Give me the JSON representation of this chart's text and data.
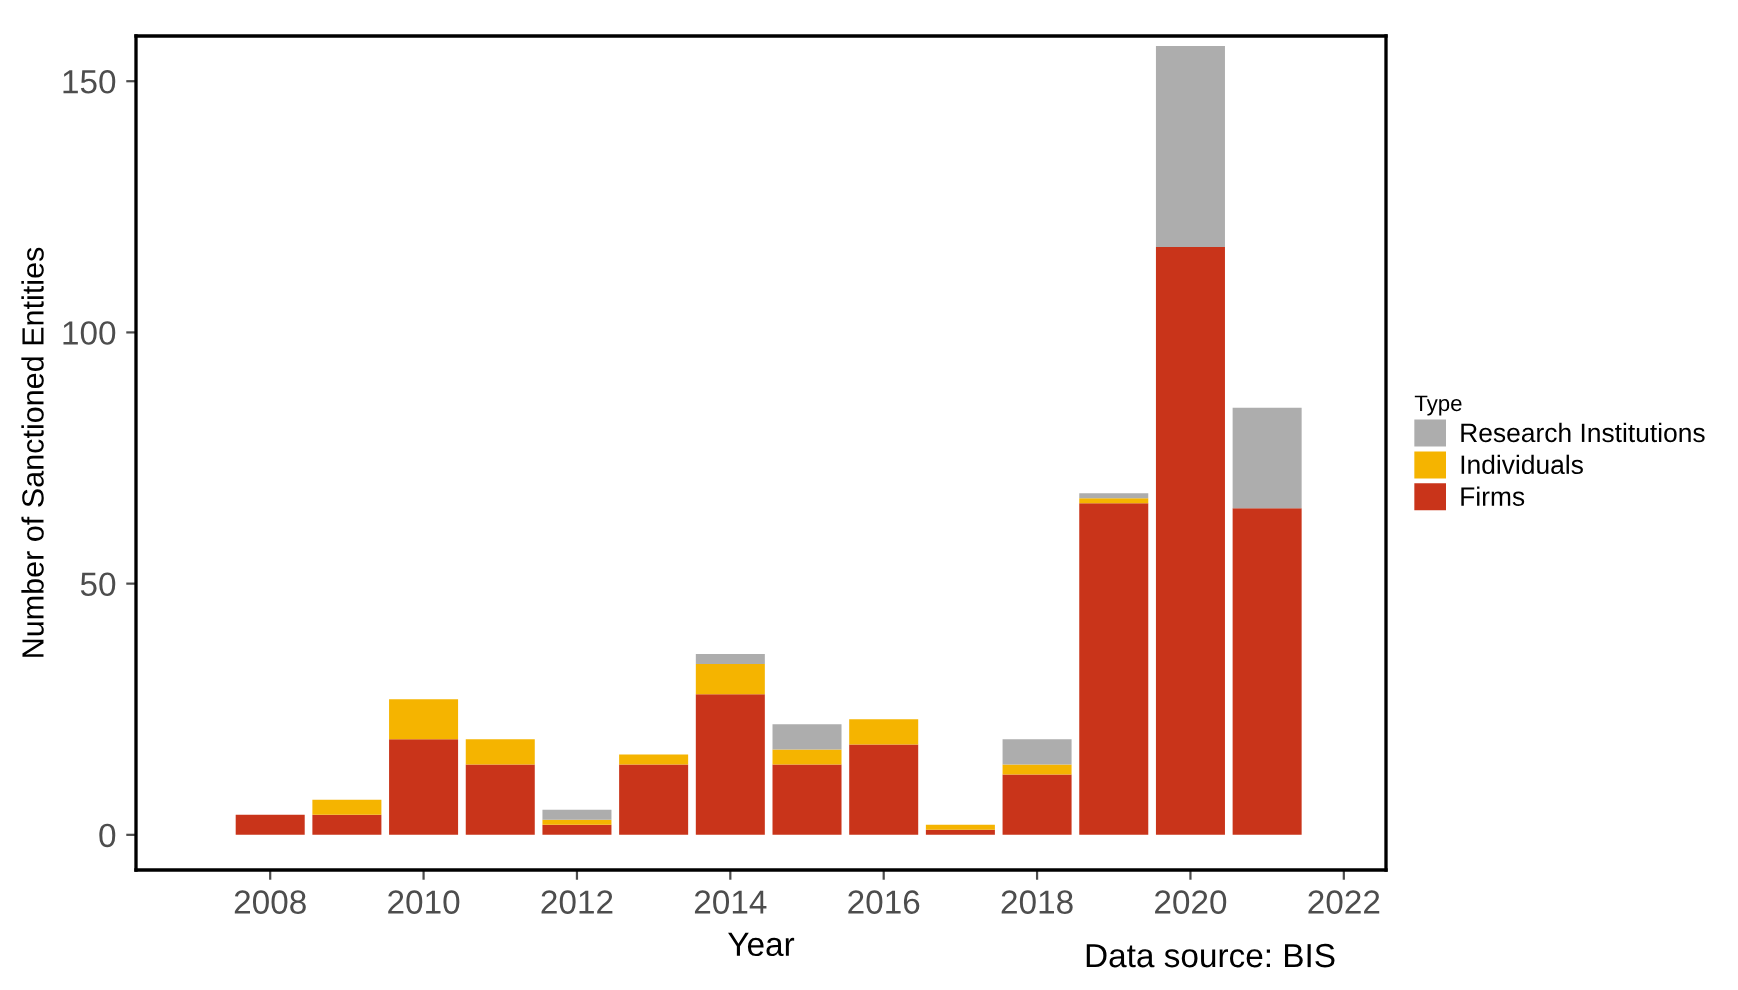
{
  "chart_data": {
    "type": "bar",
    "stacked": true,
    "x": [
      2008,
      2009,
      2010,
      2011,
      2012,
      2013,
      2014,
      2015,
      2016,
      2017,
      2018,
      2019,
      2020,
      2021
    ],
    "series": [
      {
        "name": "Firms",
        "color": "#c9341a",
        "values": [
          4,
          4,
          19,
          14,
          2,
          14,
          28,
          14,
          18,
          1,
          12,
          66,
          117,
          65
        ]
      },
      {
        "name": "Individuals",
        "color": "#f5b400",
        "values": [
          0,
          3,
          8,
          5,
          1,
          2,
          6,
          3,
          5,
          1,
          2,
          1,
          0,
          0
        ]
      },
      {
        "name": "Research Institutions",
        "color": "#adadad",
        "values": [
          0,
          0,
          0,
          0,
          2,
          0,
          2,
          5,
          0,
          0,
          5,
          1,
          40,
          20
        ]
      }
    ],
    "xlabel": "Year",
    "ylabel": "Number of Sanctioned Entities",
    "legend_title": "Type",
    "legend": "right",
    "xlim": [
      2006.25,
      2022.55
    ],
    "xticks": [
      2008,
      2010,
      2012,
      2014,
      2016,
      2018,
      2020,
      2022
    ],
    "ylim": [
      -7,
      159
    ],
    "yticks": [
      0,
      50,
      100,
      150
    ],
    "grid": false,
    "annotations": [
      "Data source: BIS"
    ]
  }
}
